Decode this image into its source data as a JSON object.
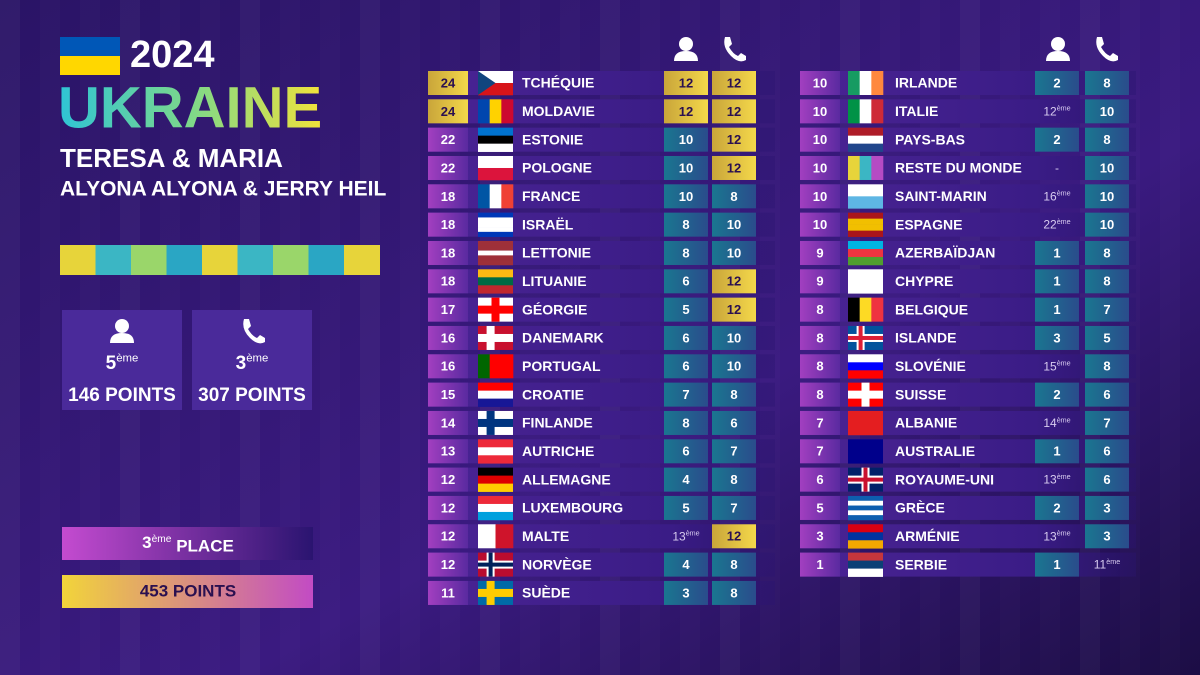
{
  "header": {
    "year": "2024",
    "country": "UKRAINE",
    "line1": "TERESA & MARIA",
    "line2": "ALYONA ALYONA & JERRY HEIL"
  },
  "summary": {
    "jury_rank": "5ème",
    "jury_points": "146 POINTS",
    "televote_rank": "3ème",
    "televote_points": "307 POINTS",
    "place": "3ème PLACE",
    "total_points": "453 POINTS"
  },
  "tables": [
    {
      "rows": [
        {
          "total": 24,
          "country": "TCHÉQUIE",
          "jury": 12,
          "televote": 12
        },
        {
          "total": 24,
          "country": "MOLDAVIE",
          "jury": 12,
          "televote": 12
        },
        {
          "total": 22,
          "country": "ESTONIE",
          "jury": 10,
          "televote": 12
        },
        {
          "total": 22,
          "country": "POLOGNE",
          "jury": 10,
          "televote": 12
        },
        {
          "total": 18,
          "country": "FRANCE",
          "jury": 10,
          "televote": 8
        },
        {
          "total": 18,
          "country": "ISRAËL",
          "jury": 8,
          "televote": 10
        },
        {
          "total": 18,
          "country": "LETTONIE",
          "jury": 8,
          "televote": 10
        },
        {
          "total": 18,
          "country": "LITUANIE",
          "jury": 6,
          "televote": 12
        },
        {
          "total": 17,
          "country": "GÉORGIE",
          "jury": 5,
          "televote": 12
        },
        {
          "total": 16,
          "country": "DANEMARK",
          "jury": 6,
          "televote": 10
        },
        {
          "total": 16,
          "country": "PORTUGAL",
          "jury": 6,
          "televote": 10
        },
        {
          "total": 15,
          "country": "CROATIE",
          "jury": 7,
          "televote": 8
        },
        {
          "total": 14,
          "country": "FINLANDE",
          "jury": 8,
          "televote": 6
        },
        {
          "total": 13,
          "country": "AUTRICHE",
          "jury": 6,
          "televote": 7
        },
        {
          "total": 12,
          "country": "ALLEMAGNE",
          "jury": 4,
          "televote": 8
        },
        {
          "total": 12,
          "country": "LUXEMBOURG",
          "jury": 5,
          "televote": 7
        },
        {
          "total": 12,
          "country": "MALTE",
          "jury": "13ème",
          "televote": 12
        },
        {
          "total": 12,
          "country": "NORVÈGE",
          "jury": 4,
          "televote": 8
        },
        {
          "total": 11,
          "country": "SUÈDE",
          "jury": 3,
          "televote": 8
        }
      ]
    },
    {
      "rows": [
        {
          "total": 10,
          "country": "IRLANDE",
          "jury": 2,
          "televote": 8
        },
        {
          "total": 10,
          "country": "ITALIE",
          "jury": "12ème",
          "televote": 10
        },
        {
          "total": 10,
          "country": "PAYS-BAS",
          "jury": 2,
          "televote": 8
        },
        {
          "total": 10,
          "country": "RESTE DU MONDE",
          "jury": "-",
          "televote": 10
        },
        {
          "total": 10,
          "country": "SAINT-MARIN",
          "jury": "16ème",
          "televote": 10
        },
        {
          "total": 10,
          "country": "ESPAGNE",
          "jury": "22ème",
          "televote": 10
        },
        {
          "total": 9,
          "country": "AZERBAÏDJAN",
          "jury": 1,
          "televote": 8
        },
        {
          "total": 9,
          "country": "CHYPRE",
          "jury": 1,
          "televote": 8
        },
        {
          "total": 8,
          "country": "BELGIQUE",
          "jury": 1,
          "televote": 7
        },
        {
          "total": 8,
          "country": "ISLANDE",
          "jury": 3,
          "televote": 5
        },
        {
          "total": 8,
          "country": "SLOVÉNIE",
          "jury": "15ème",
          "televote": 8
        },
        {
          "total": 8,
          "country": "SUISSE",
          "jury": 2,
          "televote": 6
        },
        {
          "total": 7,
          "country": "ALBANIE",
          "jury": "14ème",
          "televote": 7
        },
        {
          "total": 7,
          "country": "AUSTRALIE",
          "jury": 1,
          "televote": 6
        },
        {
          "total": 6,
          "country": "ROYAUME-UNI",
          "jury": "13ème",
          "televote": 6
        },
        {
          "total": 5,
          "country": "GRÈCE",
          "jury": 2,
          "televote": 3
        },
        {
          "total": 3,
          "country": "ARMÉNIE",
          "jury": "13ème",
          "televote": 3
        },
        {
          "total": 1,
          "country": "SERBIE",
          "jury": 1,
          "televote": "11ème"
        }
      ]
    }
  ]
}
